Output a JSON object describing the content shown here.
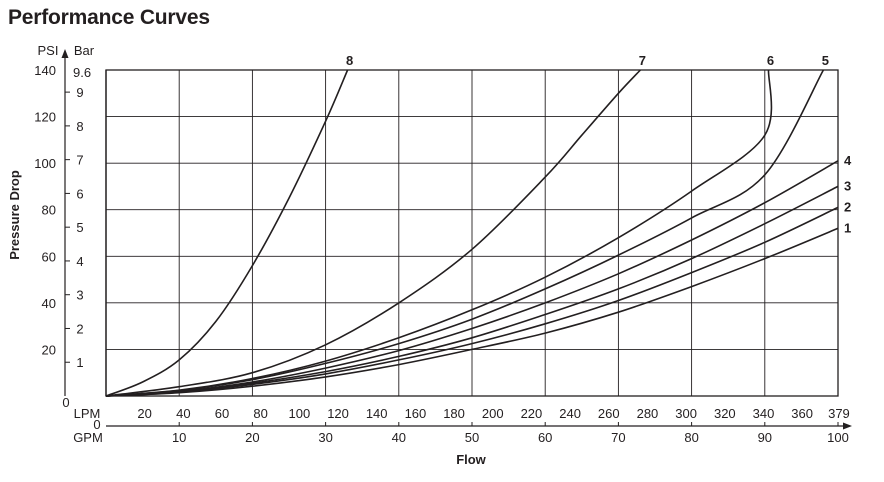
{
  "chart_data": {
    "type": "line",
    "title": "Performance Curves",
    "xlabel": "Flow",
    "ylabel": "Pressure Drop",
    "x_units_primary": "LPM",
    "x_units_secondary": "GPM",
    "y_units_primary": "PSI",
    "y_units_secondary": "Bar",
    "xlim": [
      0,
      100
    ],
    "ylim": [
      0,
      140
    ],
    "grid": true,
    "gpm_ticks": [
      "0",
      "10",
      "20",
      "30",
      "40",
      "50",
      "60",
      "70",
      "80",
      "90",
      "100"
    ],
    "lpm_ticks": [
      {
        "v": 5.28,
        "label": "20"
      },
      {
        "v": 10.57,
        "label": "40"
      },
      {
        "v": 15.85,
        "label": "60"
      },
      {
        "v": 21.13,
        "label": "80"
      },
      {
        "v": 26.42,
        "label": "100"
      },
      {
        "v": 31.7,
        "label": "120"
      },
      {
        "v": 36.98,
        "label": "140"
      },
      {
        "v": 42.27,
        "label": "160"
      },
      {
        "v": 47.55,
        "label": "180"
      },
      {
        "v": 52.83,
        "label": "200"
      },
      {
        "v": 58.12,
        "label": "220"
      },
      {
        "v": 63.4,
        "label": "240"
      },
      {
        "v": 68.68,
        "label": "260"
      },
      {
        "v": 73.97,
        "label": "280"
      },
      {
        "v": 79.25,
        "label": "300"
      },
      {
        "v": 84.54,
        "label": "320"
      },
      {
        "v": 89.82,
        "label": "340"
      },
      {
        "v": 95.1,
        "label": "360"
      },
      {
        "v": 100.13,
        "label": "379"
      }
    ],
    "psi_ticks": [
      "20",
      "40",
      "60",
      "80",
      "100",
      "120",
      "140"
    ],
    "psi_zero": "0",
    "bar_ticks": [
      {
        "v": 14.5,
        "label": "1"
      },
      {
        "v": 29.0,
        "label": "2"
      },
      {
        "v": 43.5,
        "label": "3"
      },
      {
        "v": 58.0,
        "label": "4"
      },
      {
        "v": 72.5,
        "label": "5"
      },
      {
        "v": 87.0,
        "label": "6"
      },
      {
        "v": 101.5,
        "label": "7"
      },
      {
        "v": 116.0,
        "label": "8"
      },
      {
        "v": 130.5,
        "label": "9"
      },
      {
        "v": 139.2,
        "label": "9.6"
      }
    ],
    "series": [
      {
        "name": "1",
        "x": [
          0,
          10,
          20,
          30,
          40,
          50,
          60,
          70,
          80,
          90,
          100
        ],
        "y": [
          0,
          1.4,
          4.2,
          8.2,
          13.5,
          20,
          27,
          36,
          47,
          59,
          72
        ]
      },
      {
        "name": "2",
        "x": [
          0,
          10,
          20,
          30,
          40,
          50,
          60,
          70,
          80,
          90,
          100
        ],
        "y": [
          0,
          1.6,
          5,
          9.5,
          15.5,
          22.5,
          31,
          41,
          53,
          66,
          81
        ]
      },
      {
        "name": "3",
        "x": [
          0,
          10,
          20,
          30,
          40,
          50,
          60,
          70,
          80,
          90,
          100
        ],
        "y": [
          0,
          1.8,
          5.5,
          10.5,
          17,
          25,
          35,
          46,
          59,
          74,
          90
        ]
      },
      {
        "name": "4",
        "x": [
          0,
          10,
          20,
          30,
          40,
          50,
          60,
          70,
          80,
          90,
          100
        ],
        "y": [
          0,
          2,
          6,
          12,
          19.5,
          29,
          40,
          52.5,
          67,
          83,
          101
        ]
      },
      {
        "name": "5",
        "x": [
          0,
          10,
          20,
          30,
          40,
          50,
          60,
          70,
          80,
          90,
          98
        ],
        "y": [
          0,
          2.4,
          7,
          14,
          22.5,
          33,
          46,
          60.5,
          76.5,
          95,
          140
        ]
      },
      {
        "name": "6",
        "x": [
          0,
          10,
          20,
          30,
          40,
          50,
          60,
          70,
          80,
          90,
          90.5
        ],
        "y": [
          0,
          2.5,
          7.5,
          15,
          25,
          37,
          51,
          68,
          88,
          112,
          140
        ]
      },
      {
        "name": "7",
        "x": [
          0,
          10,
          20,
          30,
          40,
          50,
          60,
          65,
          70,
          73
        ],
        "y": [
          0,
          4,
          10,
          22,
          40,
          63,
          94,
          112,
          130,
          140
        ]
      },
      {
        "name": "8",
        "x": [
          0,
          5,
          10,
          15,
          20,
          25,
          30,
          33
        ],
        "y": [
          0,
          6,
          15.5,
          32,
          56,
          85,
          118,
          140
        ]
      }
    ]
  }
}
